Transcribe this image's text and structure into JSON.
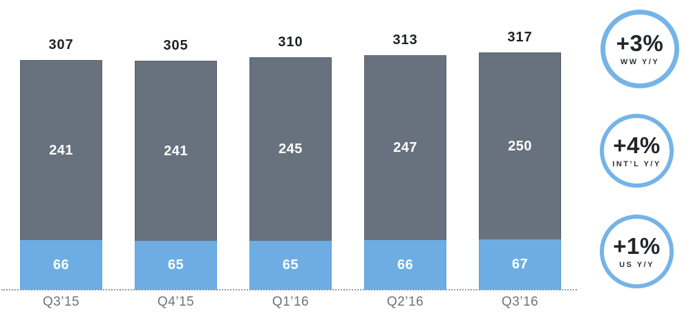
{
  "chart_data": {
    "type": "bar",
    "stacked": true,
    "grid": false,
    "legend": "none",
    "categories": [
      "Q3’15",
      "Q4’15",
      "Q1’16",
      "Q2’16",
      "Q3’16"
    ],
    "series": [
      {
        "name": "US",
        "color": "#6dade4",
        "values": [
          66,
          65,
          65,
          66,
          67
        ]
      },
      {
        "name": "INT’L",
        "color": "#68727e",
        "values": [
          241,
          241,
          245,
          247,
          250
        ]
      }
    ],
    "totals": [
      307,
      305,
      310,
      313,
      317
    ],
    "ylim": [
      0,
      387
    ],
    "baseline_style": "dotted"
  },
  "badges": [
    {
      "value": "+3%",
      "label": "WW Y/Y"
    },
    {
      "value": "+4%",
      "label": "INT’L Y/Y"
    },
    {
      "value": "+1%",
      "label": "US Y/Y"
    }
  ],
  "colors": {
    "bar_gray": "#68727e",
    "bar_blue": "#6dade4",
    "circle_ring_blue": "#74b4e8",
    "total_label": "#1d2126",
    "axis_label": "#6a737d",
    "dotted_line": "#8f969d",
    "segment_text": "#ffffff"
  }
}
